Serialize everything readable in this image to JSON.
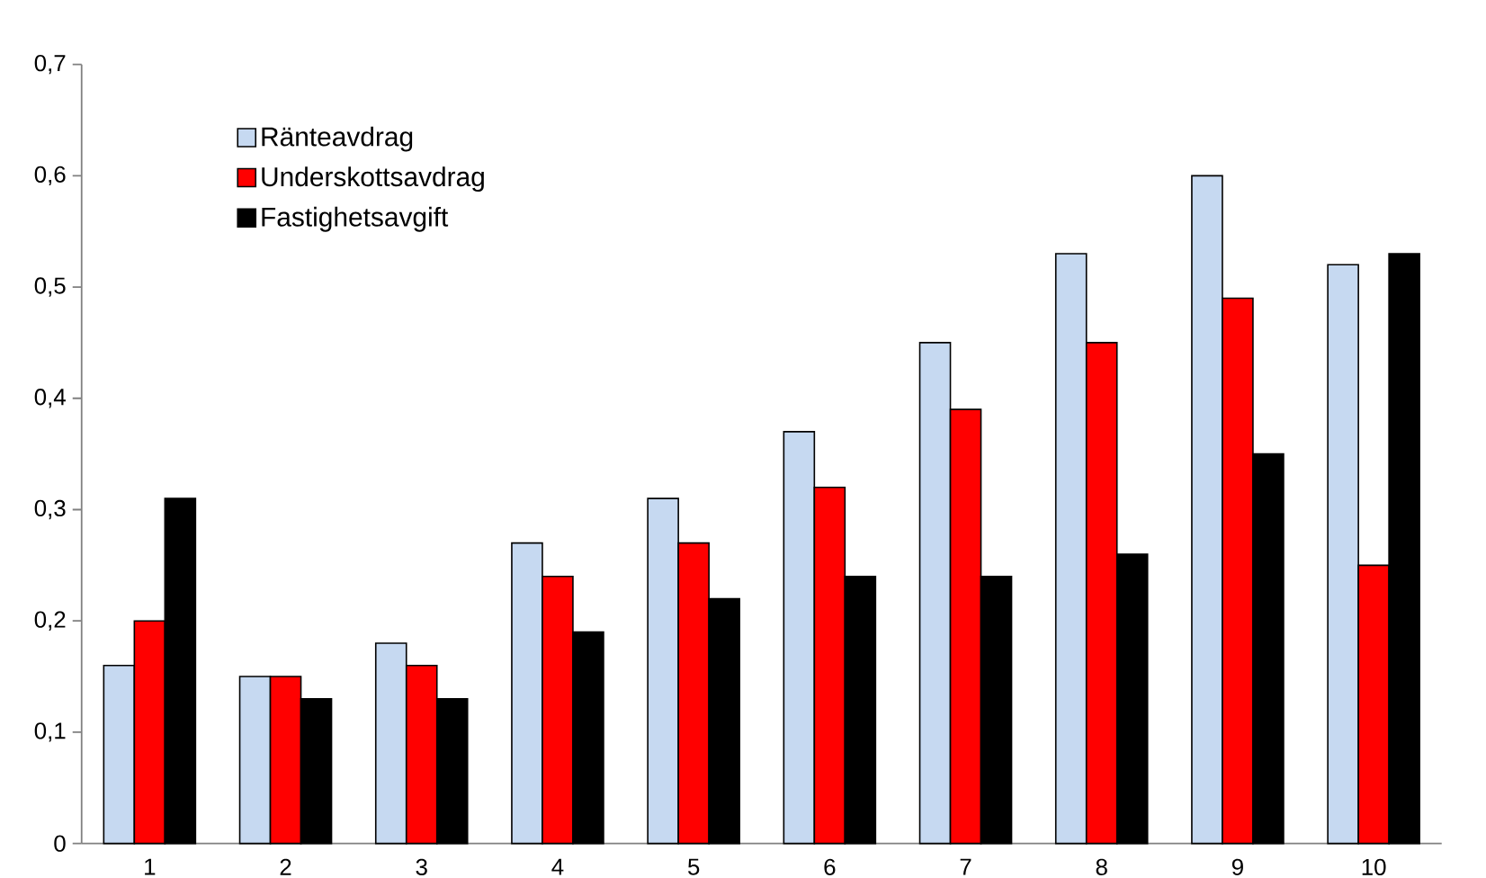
{
  "chart_data": {
    "type": "bar",
    "categories": [
      "1",
      "2",
      "3",
      "4",
      "5",
      "6",
      "7",
      "8",
      "9",
      "10"
    ],
    "series": [
      {
        "name": "Ränteavdrag",
        "color": "#c6d9f1",
        "values": [
          0.16,
          0.15,
          0.18,
          0.27,
          0.31,
          0.37,
          0.45,
          0.53,
          0.6,
          0.52
        ]
      },
      {
        "name": "Underskottsavdrag",
        "color": "#ff0000",
        "values": [
          0.2,
          0.15,
          0.16,
          0.24,
          0.27,
          0.32,
          0.39,
          0.45,
          0.49,
          0.25
        ]
      },
      {
        "name": "Fastighetsavgift",
        "color": "#000000",
        "values": [
          0.31,
          0.13,
          0.13,
          0.19,
          0.22,
          0.24,
          0.24,
          0.26,
          0.35,
          0.53
        ]
      }
    ],
    "ylim": [
      0,
      0.7
    ],
    "yticks": [
      {
        "value": 0,
        "label": "0"
      },
      {
        "value": 0.1,
        "label": "0,1"
      },
      {
        "value": 0.2,
        "label": "0,2"
      },
      {
        "value": 0.3,
        "label": "0,3"
      },
      {
        "value": 0.4,
        "label": "0,4"
      },
      {
        "value": 0.5,
        "label": "0,5"
      },
      {
        "value": 0.6,
        "label": "0,6"
      },
      {
        "value": 0.7,
        "label": "0,7"
      }
    ],
    "grid": false,
    "legend": "top left"
  }
}
